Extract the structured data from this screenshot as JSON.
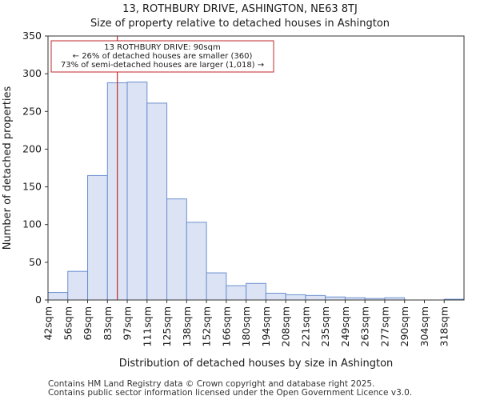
{
  "chart_data": {
    "type": "bar",
    "title": "13, ROTHBURY DRIVE, ASHINGTON, NE63 8TJ",
    "subtitle": "Size of property relative to detached houses in Ashington",
    "xlabel": "Distribution of detached houses by size in Ashington",
    "ylabel": "Number of detached properties",
    "categories": [
      "42sqm",
      "56sqm",
      "69sqm",
      "83sqm",
      "97sqm",
      "111sqm",
      "125sqm",
      "138sqm",
      "152sqm",
      "166sqm",
      "180sqm",
      "194sqm",
      "208sqm",
      "221sqm",
      "235sqm",
      "249sqm",
      "263sqm",
      "277sqm",
      "290sqm",
      "304sqm",
      "318sqm"
    ],
    "values": [
      10,
      38,
      165,
      288,
      289,
      261,
      134,
      103,
      36,
      19,
      22,
      9,
      7,
      6,
      4,
      3,
      2,
      3,
      0,
      0,
      1
    ],
    "ylim": [
      0,
      350
    ],
    "yticks": [
      0,
      50,
      100,
      150,
      200,
      250,
      300,
      350
    ],
    "grid": false,
    "marker": {
      "value_sqm": 90,
      "position_bins": 3.5,
      "color": "#c0282d",
      "annotation": [
        "13 ROTHBURY DRIVE: 90sqm",
        "← 26% of detached houses are smaller (360)",
        "73% of semi-detached houses are larger (1,018) →"
      ]
    },
    "colors": {
      "bar_fill": "#dbe3f4",
      "bar_edge": "#6b8fd0"
    }
  },
  "footer": {
    "line1": "Contains HM Land Registry data © Crown copyright and database right 2025.",
    "line2": "Contains public sector information licensed under the Open Government Licence v3.0."
  }
}
